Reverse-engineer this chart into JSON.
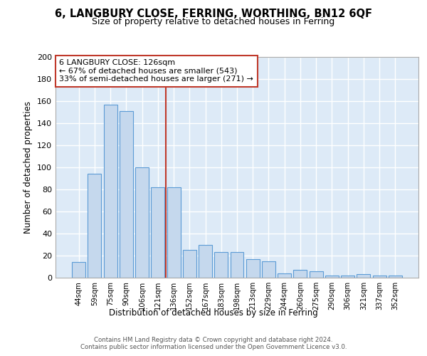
{
  "title1": "6, LANGBURY CLOSE, FERRING, WORTHING, BN12 6QF",
  "title2": "Size of property relative to detached houses in Ferring",
  "xlabel": "Distribution of detached houses by size in Ferring",
  "ylabel": "Number of detached properties",
  "categories": [
    "44sqm",
    "59sqm",
    "75sqm",
    "90sqm",
    "106sqm",
    "121sqm",
    "136sqm",
    "152sqm",
    "167sqm",
    "183sqm",
    "198sqm",
    "213sqm",
    "229sqm",
    "244sqm",
    "260sqm",
    "275sqm",
    "290sqm",
    "306sqm",
    "321sqm",
    "337sqm",
    "352sqm"
  ],
  "values": [
    14,
    94,
    157,
    151,
    100,
    82,
    82,
    25,
    30,
    23,
    23,
    17,
    15,
    4,
    7,
    6,
    2,
    2,
    3,
    2,
    2
  ],
  "bar_color": "#c5d8ed",
  "bar_edge_color": "#5b9bd5",
  "highlight_index": 5,
  "vline_color": "#c0392b",
  "annotation_text": "6 LANGBURY CLOSE: 126sqm\n← 67% of detached houses are smaller (543)\n33% of semi-detached houses are larger (271) →",
  "annotation_box_color": "#c0392b",
  "footer": "Contains HM Land Registry data © Crown copyright and database right 2024.\nContains public sector information licensed under the Open Government Licence v3.0.",
  "ylim": [
    0,
    200
  ],
  "yticks": [
    0,
    20,
    40,
    60,
    80,
    100,
    120,
    140,
    160,
    180,
    200
  ],
  "bg_color": "#ddeaf7",
  "grid_color": "#ffffff",
  "title_fontsize": 10.5,
  "subtitle_fontsize": 9.5
}
